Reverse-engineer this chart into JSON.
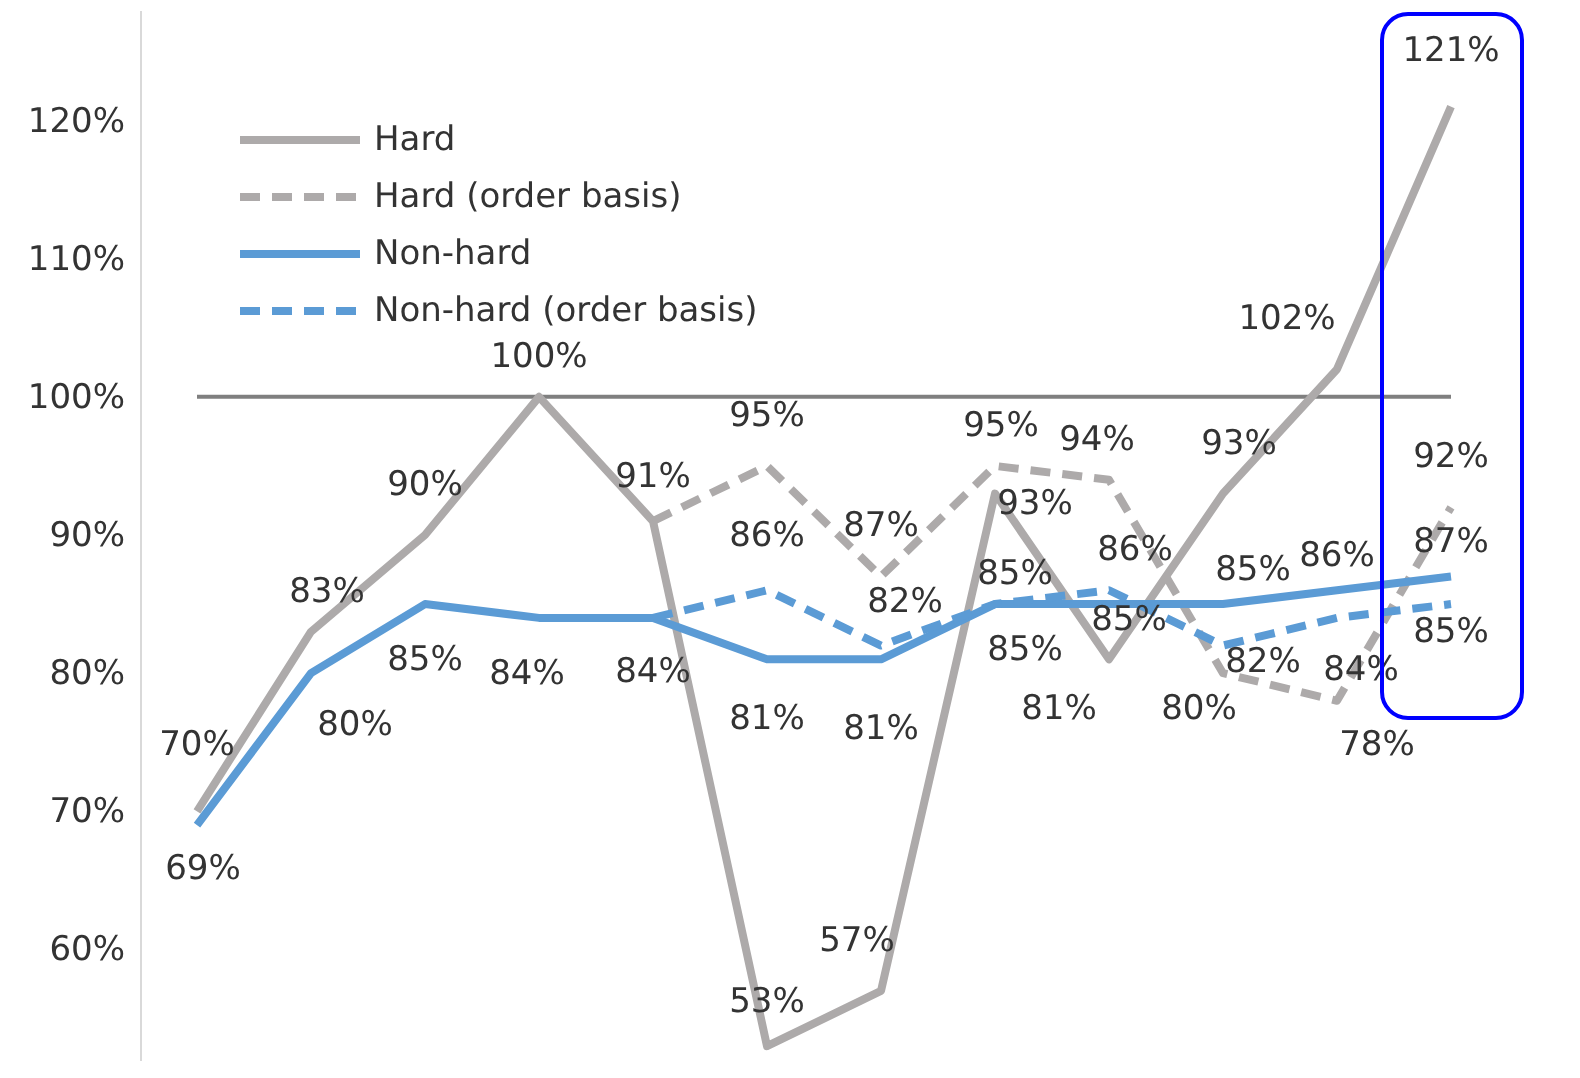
{
  "chart_data": {
    "type": "line",
    "categories": [
      null,
      null,
      null,
      null,
      null,
      null,
      null,
      null,
      null,
      null,
      null,
      null
    ],
    "series": [
      {
        "name": "Hard",
        "color": "#adaaaa",
        "line_style": "solid",
        "values": [
          70,
          83,
          90,
          100,
          91,
          53,
          57,
          93,
          81,
          93,
          102,
          121
        ],
        "value_labels": [
          "70%",
          "83%",
          "90%",
          "100%",
          "91%",
          "53%",
          "57%",
          "93%",
          "81%",
          "93%",
          "102%",
          "121%"
        ]
      },
      {
        "name": "Hard (order basis)",
        "color": "#adaaaa",
        "line_style": "dashed",
        "values": [
          null,
          null,
          null,
          null,
          91,
          95,
          87,
          95,
          94,
          80,
          78,
          92
        ],
        "value_labels": [
          null,
          null,
          null,
          null,
          null,
          "95%",
          "87%",
          "95%",
          "94%",
          "80%",
          "78%",
          "92%"
        ]
      },
      {
        "name": "Non-hard",
        "color": "#5b9bd5",
        "line_style": "solid",
        "values": [
          69,
          80,
          85,
          84,
          84,
          81,
          81,
          85,
          85,
          85,
          86,
          87
        ],
        "value_labels": [
          "69%",
          "80%",
          "85%",
          "84%",
          "84%",
          "81%",
          "81%",
          "85%",
          "85%",
          "85%",
          "86%",
          "87%"
        ]
      },
      {
        "name": "Non-hard (order basis)",
        "color": "#5b9bd5",
        "line_style": "dashed",
        "values": [
          null,
          null,
          null,
          null,
          84,
          86,
          82,
          85,
          86,
          82,
          84,
          85
        ],
        "value_labels": [
          null,
          null,
          null,
          null,
          null,
          "86%",
          "82%",
          "85%",
          "86%",
          "82%",
          "84%",
          "85%"
        ]
      }
    ],
    "ylim": [
      52,
      128
    ],
    "yticks": [
      {
        "value": 60,
        "label": "60%"
      },
      {
        "value": 70,
        "label": "70%"
      },
      {
        "value": 80,
        "label": "80%"
      },
      {
        "value": 90,
        "label": "90%"
      },
      {
        "value": 100,
        "label": "100%"
      },
      {
        "value": 110,
        "label": "110%"
      },
      {
        "value": 120,
        "label": "120%"
      }
    ],
    "ref_lines": [
      {
        "axis": "y",
        "value": 100,
        "color": "#7f7f7f"
      }
    ],
    "legend": "top left"
  }
}
